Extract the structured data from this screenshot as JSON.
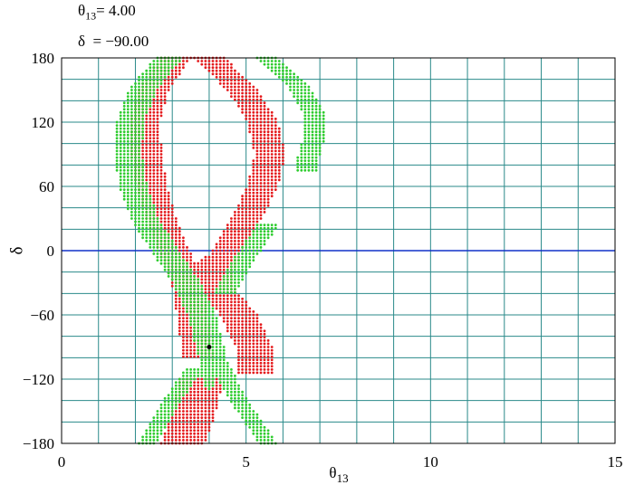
{
  "chart_data": {
    "type": "scatter",
    "annotations": [
      {
        "label": "θ",
        "sub": "13",
        "value": "= 4.00"
      },
      {
        "label": "δ  ",
        "value": "= −90.00"
      }
    ],
    "xlabel": {
      "main": "θ",
      "sub": "13"
    },
    "ylabel": "δ",
    "xlim": [
      0,
      15
    ],
    "ylim": [
      -180,
      180
    ],
    "xticks": [
      0,
      5,
      10,
      15
    ],
    "xtick_labels": [
      "0",
      "5",
      "10",
      "15"
    ],
    "yticks": [
      -180,
      -120,
      -60,
      0,
      60,
      120,
      180
    ],
    "ytick_labels": [
      "−180",
      "−120",
      "−60",
      "0",
      "60",
      "120",
      "180"
    ],
    "grid": true,
    "grid_x_step": 1,
    "grid_y_step": 20,
    "zero_line": 0,
    "true_point": {
      "x": 4.0,
      "y": -90.0
    },
    "series": [
      {
        "color": "#e41a1c",
        "regions": [
          {
            "kind": "band",
            "y_from": -100,
            "y_to": 180,
            "centers": [
              [
                -100,
                3.7
              ],
              [
                -60,
                3.55
              ],
              [
                -30,
                3.4
              ],
              [
                0,
                3.05
              ],
              [
                30,
                2.7
              ],
              [
                60,
                2.45
              ],
              [
                90,
                2.3
              ],
              [
                120,
                2.25
              ],
              [
                150,
                2.5
              ],
              [
                180,
                3.1
              ]
            ],
            "half_width": 0.42
          },
          {
            "kind": "band",
            "y_from": -40,
            "y_to": 180,
            "centers": [
              [
                -40,
                4.0
              ],
              [
                0,
                4.5
              ],
              [
                30,
                5.0
              ],
              [
                60,
                5.45
              ],
              [
                90,
                5.65
              ],
              [
                120,
                5.45
              ],
              [
                150,
                4.9
              ],
              [
                180,
                4.0
              ]
            ],
            "half_width": 0.42
          },
          {
            "kind": "band",
            "y_from": -115,
            "y_to": -20,
            "centers": [
              [
                -115,
                5.2
              ],
              [
                -90,
                5.2
              ],
              [
                -60,
                4.8
              ],
              [
                -40,
                4.3
              ],
              [
                -20,
                4.0
              ]
            ],
            "half_width": 0.5
          },
          {
            "kind": "band",
            "y_from": -180,
            "y_to": -120,
            "centers": [
              [
                -180,
                3.3
              ],
              [
                -150,
                3.6
              ],
              [
                -120,
                3.8
              ]
            ],
            "half_width": 0.6
          },
          {
            "kind": "blob",
            "cx": 3.95,
            "cy": -20,
            "rx": 0.3,
            "ry": 15
          },
          {
            "kind": "blob",
            "cx": 3.75,
            "cy": -150,
            "rx": 0.35,
            "ry": 20
          }
        ]
      },
      {
        "color": "#2ecc2e",
        "regions": [
          {
            "kind": "band",
            "y_from": -100,
            "y_to": 180,
            "centers": [
              [
                -100,
                4.1
              ],
              [
                -60,
                3.8
              ],
              [
                -30,
                3.4
              ],
              [
                0,
                2.8
              ],
              [
                30,
                2.25
              ],
              [
                60,
                1.95
              ],
              [
                90,
                1.8
              ],
              [
                120,
                1.85
              ],
              [
                150,
                2.2
              ],
              [
                180,
                2.9
              ]
            ],
            "half_width": 0.38
          },
          {
            "kind": "band",
            "y_from": 75,
            "y_to": 180,
            "centers": [
              [
                75,
                6.6
              ],
              [
                100,
                6.8
              ],
              [
                130,
                6.8
              ],
              [
                155,
                6.4
              ],
              [
                180,
                5.55
              ]
            ],
            "half_width": 0.3
          },
          {
            "kind": "band",
            "y_from": -180,
            "y_to": -110,
            "centers": [
              [
                -180,
                2.3
              ],
              [
                -140,
                3.0
              ],
              [
                -110,
                3.6
              ]
            ],
            "half_width": 0.25
          },
          {
            "kind": "band",
            "y_from": -180,
            "y_to": -100,
            "centers": [
              [
                -180,
                5.6
              ],
              [
                -140,
                4.8
              ],
              [
                -100,
                4.2
              ]
            ],
            "half_width": 0.25
          },
          {
            "kind": "band",
            "y_from": -40,
            "y_to": 25,
            "centers": [
              [
                -40,
                4.4
              ],
              [
                -10,
                4.9
              ],
              [
                25,
                5.6
              ]
            ],
            "half_width": 0.3
          },
          {
            "kind": "blob",
            "cx": 4.0,
            "cy": -90,
            "rx": 0.3,
            "ry": 40
          }
        ]
      }
    ]
  }
}
